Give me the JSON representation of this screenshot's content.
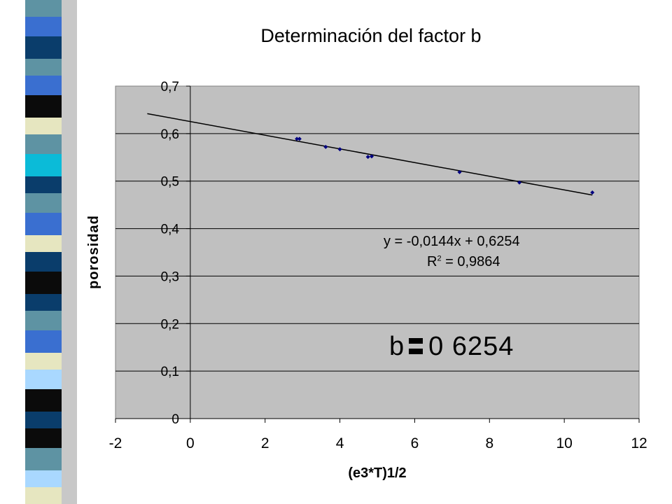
{
  "slide": {
    "title": "Determinación del factor b",
    "equation": "y = -0,0144x + 0,6254",
    "r2_prefix": "R",
    "r2_exp": "2",
    "r2_value": " = 0,9864",
    "b_left": "b",
    "b_right": "0 6254",
    "stripe_colors": [
      "#0b0b0b",
      "#3a6fd0",
      "#5e93a3",
      "#0a3d6b",
      "#e6e6c0",
      "#0bbbd8",
      "#a9d8ff"
    ]
  },
  "chart_data": {
    "type": "scatter",
    "title": "Determinación del factor b",
    "xlabel": "(e3*T)1/2",
    "ylabel": "porosidad",
    "xlim": [
      -2,
      12
    ],
    "ylim": [
      0,
      0.7
    ],
    "x_ticks": [
      "-2",
      "0",
      "2",
      "4",
      "6",
      "8",
      "10",
      "12"
    ],
    "y_ticks": [
      "0",
      "0,1",
      "0,2",
      "0,3",
      "0,4",
      "0,5",
      "0,6",
      "0,7"
    ],
    "grid": true,
    "plot_background": "#c0c0c0",
    "marker_color": "#000080",
    "series": [
      {
        "points": [
          [
            2.85,
            0.589
          ],
          [
            2.92,
            0.589
          ],
          [
            3.62,
            0.572
          ],
          [
            4.0,
            0.567
          ],
          [
            4.75,
            0.551
          ],
          [
            4.85,
            0.552
          ],
          [
            7.2,
            0.519
          ],
          [
            8.8,
            0.497
          ],
          [
            10.75,
            0.476
          ]
        ]
      }
    ],
    "trendline": {
      "slope": -0.0144,
      "intercept": 0.6254,
      "x_range": [
        -1.15,
        10.75
      ]
    }
  }
}
